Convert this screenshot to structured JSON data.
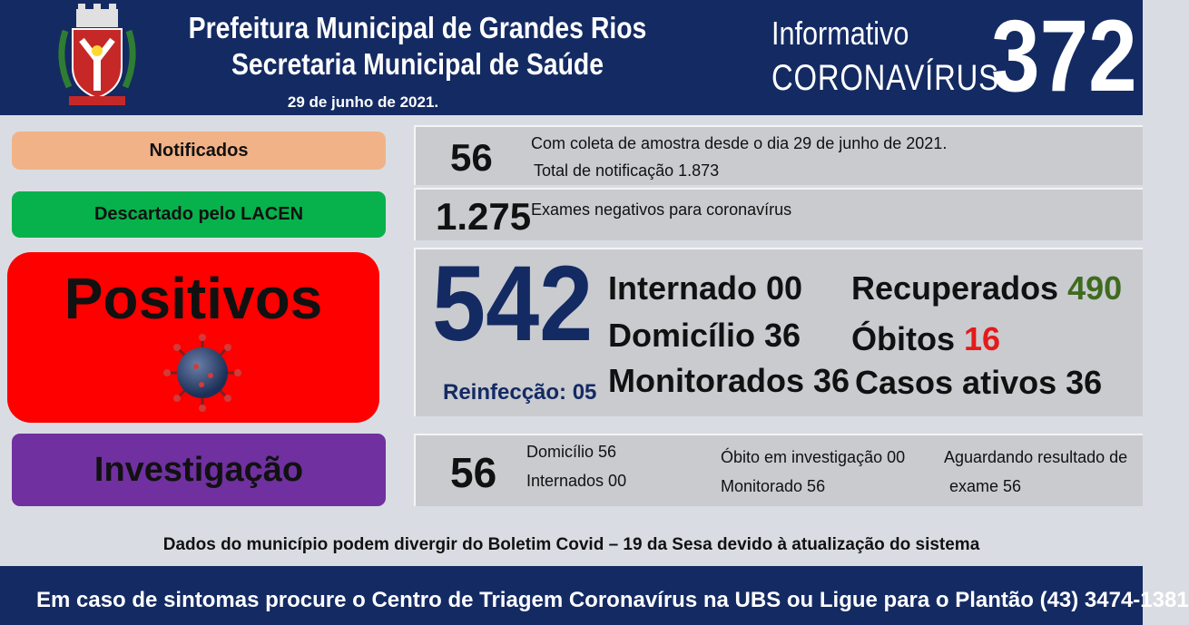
{
  "header": {
    "title_line1": "Prefeitura Municipal de Grandes Rios",
    "title_line2": "Secretaria Municipal de Saúde",
    "date": "29 de junho de 2021.",
    "info_label": "Informativo",
    "info_subject": "CORONAVÍRUS",
    "bulletin_number": "372",
    "accent_color": "#142a63"
  },
  "notificados": {
    "label": "Notificados",
    "value": "56",
    "note_line1": "Com coleta de amostra desde o dia 29 de junho de 2021.",
    "note_line2": "Total de notificação 1.873",
    "color": "#f2b287"
  },
  "descartado": {
    "label": "Descartado pelo LACEN",
    "value": "1.275",
    "note": "Exames negativos para coronavírus",
    "color": "#07b24c"
  },
  "positivos": {
    "label": "Positivos",
    "value": "542",
    "reinfeccao": "Reinfecção: 05",
    "internado": "Internado 00",
    "domicilio": "Domicílio 36",
    "monitorados": "Monitorados 36",
    "recuperados_label": "Recuperados",
    "recuperados_value": "490",
    "obitos_label": "Óbitos",
    "obitos_value": "16",
    "casos_ativos": "Casos ativos 36",
    "color": "#ff0000",
    "virus_icon": "coronavirus-icon"
  },
  "investigacao": {
    "label": "Investigação",
    "value": "56",
    "domicilio": "Domicílio 56",
    "internados": "Internados 00",
    "obito": "Óbito em investigação 00",
    "monitorado": "Monitorado 56",
    "aguardando_line1": "Aguardando resultado de",
    "aguardando_line2": "exame 56",
    "color": "#7030a0"
  },
  "disclaimer": "Dados do município podem divergir do Boletim Covid – 19 da Sesa devido à atualização do sistema",
  "footer": {
    "text": "Em caso de sintomas procure o Centro de Triagem Coronavírus na UBS ou Ligue para o Plantão (43) 3474-1381"
  }
}
